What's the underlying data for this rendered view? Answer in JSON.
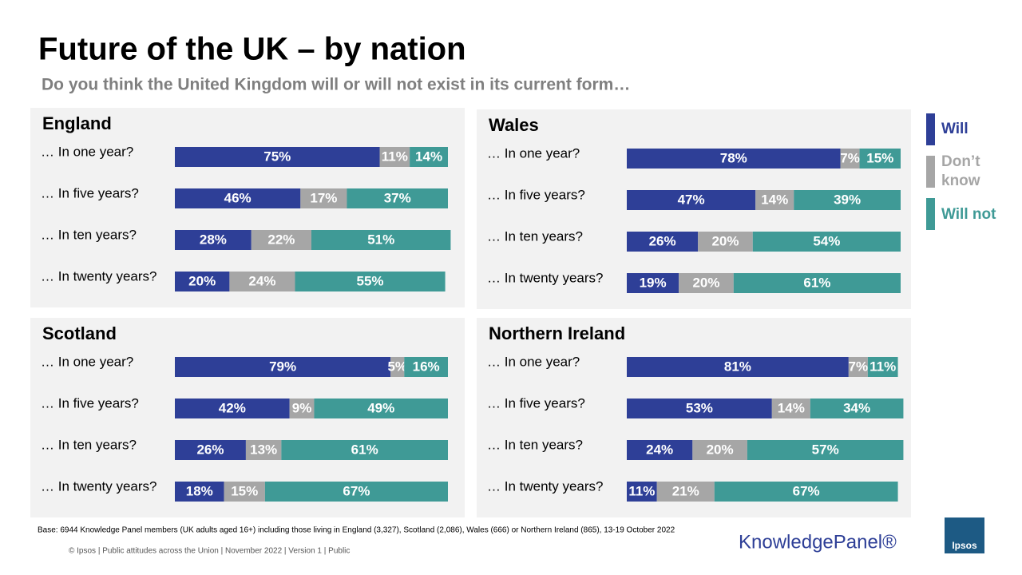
{
  "title": "Future of the UK – by nation",
  "subtitle": "Do you think the United Kingdom will or will not exist in its current form…",
  "base_note": "Base: 6944 Knowledge Panel members (UK adults aged 16+) including those living in England (3,327), Scotland (2,086), Wales (666) or Northern Ireland (865), 13-19 October 2022",
  "footer": "© Ipsos | Public attitudes across the Union | November 2022 | Version 1 | Public",
  "brand": "KnowledgePanel®",
  "logo": "Ipsos",
  "chart_data": [
    {
      "type": "bar",
      "title": "England",
      "xlim": [
        0,
        100
      ],
      "categories": [
        "… In one year?",
        "… In five years?",
        "… In ten years?",
        "… In twenty years?"
      ],
      "series": [
        {
          "name": "Will",
          "color": "#2e3f97",
          "values": [
            75,
            46,
            28,
            20
          ],
          "value_labels": [
            "75%",
            "46%",
            "28%",
            "20%"
          ]
        },
        {
          "name": "Don’t know",
          "color": "#a6a6a6",
          "values": [
            11,
            17,
            22,
            24
          ],
          "value_labels": [
            "11%",
            "17%",
            "22%",
            "24%"
          ]
        },
        {
          "name": "Will not",
          "color": "#3f9a96",
          "values": [
            14,
            37,
            51,
            55
          ],
          "value_labels": [
            "14%",
            "37%",
            "51%",
            "55%"
          ]
        }
      ]
    },
    {
      "type": "bar",
      "title": "Wales",
      "xlim": [
        0,
        100
      ],
      "categories": [
        "… In one year?",
        "… In five years?",
        "… In ten years?",
        "… In twenty years?"
      ],
      "series": [
        {
          "color": "#2e3f97",
          "values": [
            78,
            47,
            26,
            19
          ],
          "value_labels": [
            "78%",
            "47%",
            "26%",
            "19%"
          ]
        },
        {
          "color": "#a6a6a6",
          "values": [
            7,
            14,
            20,
            20
          ],
          "value_labels": [
            "7%",
            "14%",
            "20%",
            "20%"
          ]
        },
        {
          "color": "#3f9a96",
          "values": [
            15,
            39,
            54,
            61
          ],
          "value_labels": [
            "15%",
            "39%",
            "54%",
            "61%"
          ]
        }
      ]
    },
    {
      "type": "bar",
      "title": "Scotland",
      "xlim": [
        0,
        100
      ],
      "categories": [
        "… In one year?",
        "… In five years?",
        "… In ten years?",
        "… In twenty years?"
      ],
      "series": [
        {
          "color": "#2e3f97",
          "values": [
            79,
            42,
            26,
            18
          ],
          "value_labels": [
            "79%",
            "42%",
            "26%",
            "18%"
          ]
        },
        {
          "color": "#a6a6a6",
          "values": [
            5,
            9,
            13,
            15
          ],
          "value_labels": [
            "5%",
            "9%",
            "13%",
            "15%"
          ]
        },
        {
          "color": "#3f9a96",
          "values": [
            16,
            49,
            61,
            67
          ],
          "value_labels": [
            "16%",
            "49%",
            "61%",
            "67%"
          ]
        }
      ]
    },
    {
      "type": "bar",
      "title": "Northern Ireland",
      "xlim": [
        0,
        100
      ],
      "categories": [
        "… In one year?",
        "… In five years?",
        "… In ten years?",
        "… In twenty years?"
      ],
      "series": [
        {
          "color": "#2e3f97",
          "values": [
            81,
            53,
            24,
            11
          ],
          "value_labels": [
            "81%",
            "53%",
            "24%",
            "11%"
          ]
        },
        {
          "color": "#a6a6a6",
          "values": [
            7,
            14,
            20,
            21
          ],
          "value_labels": [
            "7%",
            "14%",
            "20%",
            "21%"
          ]
        },
        {
          "color": "#3f9a96",
          "values": [
            11,
            34,
            57,
            67
          ],
          "value_labels": [
            "11%",
            "34%",
            "57%",
            "67%"
          ]
        }
      ]
    }
  ]
}
